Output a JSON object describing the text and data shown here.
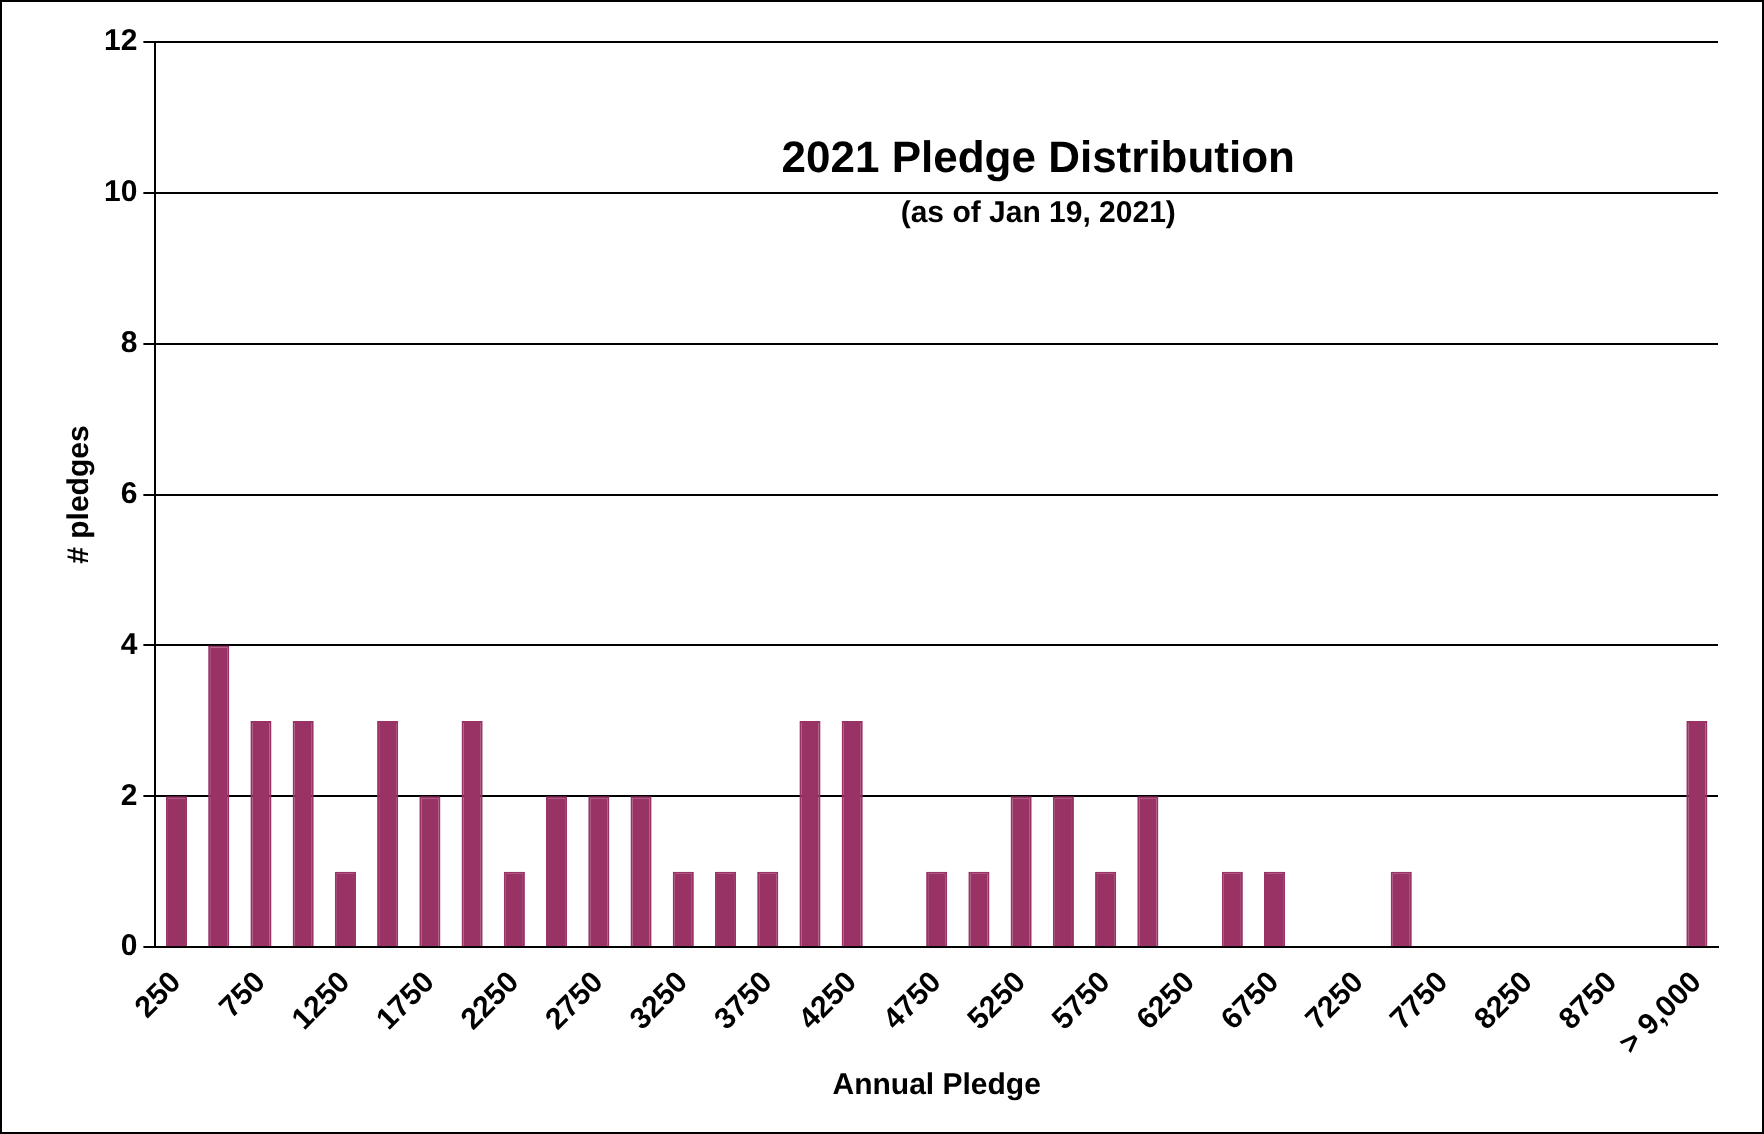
{
  "chart_data": {
    "type": "bar",
    "title": "2021 Pledge Distribution",
    "subtitle": "(as of Jan 19, 2021)",
    "xlabel": "Annual Pledge",
    "ylabel": "# pledges",
    "categories": [
      "250",
      null,
      "750",
      null,
      "1250",
      null,
      "1750",
      null,
      "2250",
      null,
      "2750",
      null,
      "3250",
      null,
      "3750",
      null,
      "4250",
      null,
      "4750",
      null,
      "5250",
      null,
      "5750",
      null,
      "6250",
      null,
      "6750",
      null,
      "7250",
      null,
      "7750",
      null,
      "8250",
      null,
      "8750",
      null,
      "> 9,000"
    ],
    "values": [
      2,
      4,
      3,
      3,
      1,
      3,
      2,
      3,
      1,
      2,
      2,
      2,
      1,
      1,
      1,
      3,
      3,
      0,
      1,
      1,
      2,
      2,
      1,
      2,
      0,
      1,
      1,
      0,
      0,
      1,
      0,
      0,
      0,
      0,
      0,
      0,
      3
    ],
    "color": "#993366",
    "ylim": [
      0,
      12
    ],
    "yticks": [
      0,
      2,
      4,
      6,
      8,
      10,
      12
    ],
    "grid": "y",
    "legend": false
  }
}
